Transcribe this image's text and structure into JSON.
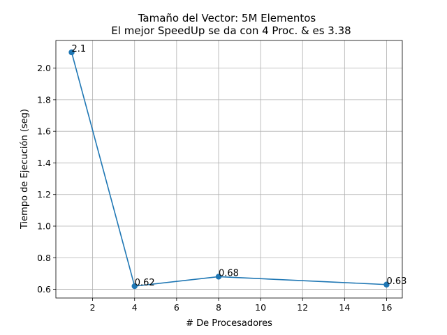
{
  "chart_data": {
    "type": "line",
    "title": "Tamaño del Vector: 5M Elementos",
    "subtitle": "El mejor SpeedUp se da con 4 Proc. & es 3.38",
    "xlabel": "# De Procesadores",
    "ylabel": "Tiempo de Ejecución (seg)",
    "x": [
      1,
      4,
      8,
      16
    ],
    "series": [
      {
        "values": [
          2.1,
          0.62,
          0.68,
          0.63
        ]
      }
    ],
    "point_labels": [
      "2.1",
      "0.62",
      "0.68",
      "0.63"
    ],
    "xlim": [
      0.25,
      16.75
    ],
    "ylim": [
      0.545,
      2.175
    ],
    "xticks": [
      2,
      4,
      6,
      8,
      10,
      12,
      14,
      16
    ],
    "yticks": [
      0.6,
      0.8,
      1.0,
      1.2,
      1.4,
      1.6,
      1.8,
      2.0
    ],
    "xtick_labels": [
      "2",
      "4",
      "6",
      "8",
      "10",
      "12",
      "14",
      "16"
    ],
    "ytick_labels": [
      "0.6",
      "0.8",
      "1.0",
      "1.2",
      "1.4",
      "1.6",
      "1.8",
      "2.0"
    ],
    "grid": true,
    "line_color": "#1f77b4"
  }
}
